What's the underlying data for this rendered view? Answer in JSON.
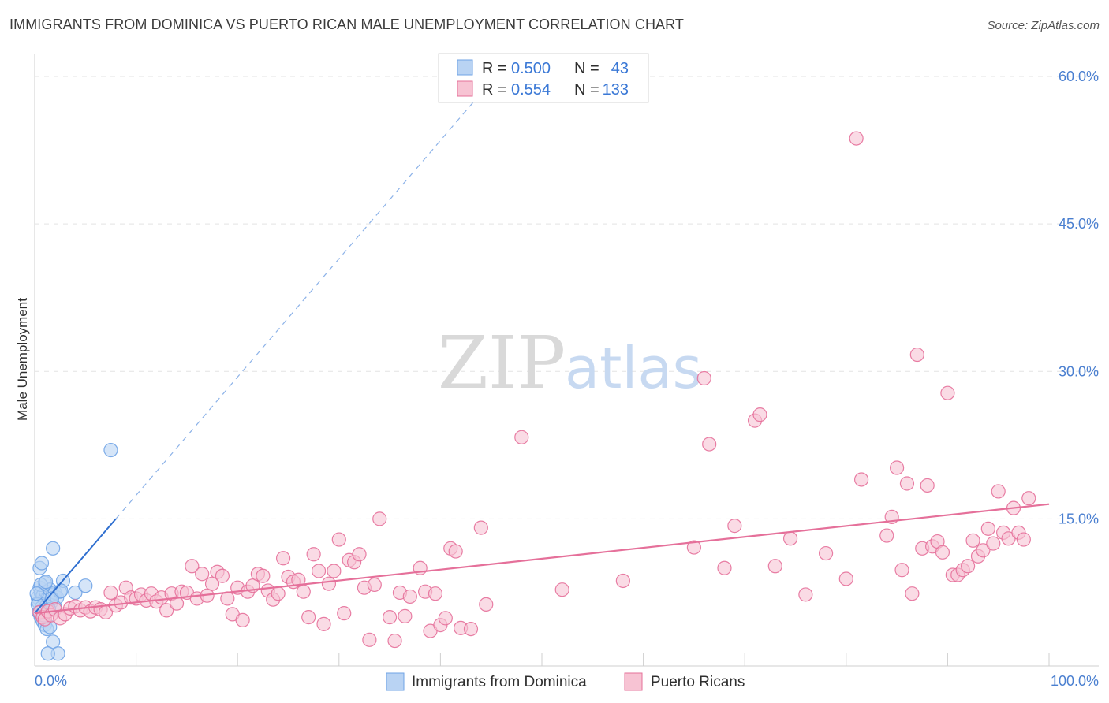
{
  "chart_data": {
    "type": "scatter",
    "title": "IMMIGRANTS FROM DOMINICA VS PUERTO RICAN MALE UNEMPLOYMENT CORRELATION CHART",
    "source": "Source: ZipAtlas.com",
    "ylabel": "Male Unemployment",
    "xlabel": "",
    "xlim": [
      0,
      100
    ],
    "ylim": [
      0,
      63
    ],
    "x_tick_labels": [
      "0.0%",
      "100.0%"
    ],
    "y_ticks": [
      15,
      30,
      45,
      60
    ],
    "y_tick_labels": [
      "15.0%",
      "30.0%",
      "45.0%",
      "60.0%"
    ],
    "watermark": {
      "zip": "ZIP",
      "atlas": "atlas"
    },
    "legend": {
      "r_label": "R =",
      "n_label": "N =",
      "entries": [
        {
          "r": "0.500",
          "n": "43"
        },
        {
          "r": "0.554",
          "n": "133"
        }
      ]
    },
    "series": [
      {
        "name": "Immigrants from Dominica",
        "color": "#6fa3e6",
        "fill": "#b9d3f3",
        "trend": {
          "x0": 0,
          "y0": 5.4,
          "x1": 8,
          "y1": 15.0,
          "x_dash_end": 45,
          "y_dash_end": 59.5
        },
        "points": [
          [
            0.3,
            7.0
          ],
          [
            0.4,
            6.5
          ],
          [
            0.5,
            8.0
          ],
          [
            0.6,
            7.5
          ],
          [
            0.7,
            6.0
          ],
          [
            0.8,
            7.2
          ],
          [
            0.9,
            5.5
          ],
          [
            1.0,
            6.8
          ],
          [
            1.1,
            7.6
          ],
          [
            1.2,
            6.2
          ],
          [
            0.5,
            10.0
          ],
          [
            0.7,
            10.5
          ],
          [
            1.0,
            8.5
          ],
          [
            1.3,
            7.0
          ],
          [
            1.5,
            7.8
          ],
          [
            1.6,
            6.5
          ],
          [
            1.8,
            7.3
          ],
          [
            2.0,
            7.5
          ],
          [
            2.2,
            7.0
          ],
          [
            2.5,
            7.6
          ],
          [
            0.4,
            5.5
          ],
          [
            0.6,
            5.0
          ],
          [
            0.8,
            4.6
          ],
          [
            1.0,
            4.2
          ],
          [
            1.2,
            3.8
          ],
          [
            1.5,
            4.0
          ],
          [
            1.8,
            2.5
          ],
          [
            2.3,
            1.3
          ],
          [
            1.3,
            1.3
          ],
          [
            1.8,
            12.0
          ],
          [
            2.8,
            8.7
          ],
          [
            4.0,
            7.5
          ],
          [
            5.0,
            8.2
          ],
          [
            7.5,
            22.0
          ],
          [
            2.0,
            6.0
          ],
          [
            1.4,
            5.8
          ],
          [
            0.9,
            5.2
          ],
          [
            0.3,
            6.3
          ],
          [
            1.7,
            6.9
          ],
          [
            0.6,
            8.3
          ],
          [
            1.1,
            8.6
          ],
          [
            2.6,
            7.7
          ],
          [
            0.2,
            7.4
          ]
        ]
      },
      {
        "name": "Puerto Ricans",
        "color": "#e5709a",
        "fill": "#f7c3d3",
        "trend": {
          "x0": 0,
          "y0": 5.4,
          "x1": 100,
          "y1": 16.5
        },
        "points": [
          [
            0.5,
            5.5
          ],
          [
            0.8,
            5.0
          ],
          [
            1.0,
            4.8
          ],
          [
            1.3,
            5.6
          ],
          [
            1.6,
            5.2
          ],
          [
            2.0,
            5.8
          ],
          [
            2.5,
            4.9
          ],
          [
            3.0,
            5.3
          ],
          [
            3.5,
            5.9
          ],
          [
            4.0,
            6.1
          ],
          [
            4.5,
            5.7
          ],
          [
            5.0,
            6.0
          ],
          [
            5.5,
            5.6
          ],
          [
            6.0,
            6.0
          ],
          [
            6.5,
            5.8
          ],
          [
            7.0,
            5.5
          ],
          [
            7.5,
            7.5
          ],
          [
            8.0,
            6.2
          ],
          [
            8.5,
            6.5
          ],
          [
            9.0,
            8.0
          ],
          [
            9.5,
            7.0
          ],
          [
            10.0,
            6.9
          ],
          [
            10.5,
            7.3
          ],
          [
            11.0,
            6.7
          ],
          [
            11.5,
            7.4
          ],
          [
            12.0,
            6.6
          ],
          [
            12.5,
            7.0
          ],
          [
            13.0,
            5.7
          ],
          [
            13.5,
            7.4
          ],
          [
            14.0,
            6.4
          ],
          [
            14.5,
            7.6
          ],
          [
            15.0,
            7.5
          ],
          [
            15.5,
            10.2
          ],
          [
            16.0,
            6.9
          ],
          [
            16.5,
            9.4
          ],
          [
            17.0,
            7.2
          ],
          [
            17.5,
            8.4
          ],
          [
            18.0,
            9.6
          ],
          [
            18.5,
            9.2
          ],
          [
            19.0,
            6.9
          ],
          [
            19.5,
            5.3
          ],
          [
            20.0,
            8.0
          ],
          [
            20.5,
            4.7
          ],
          [
            21.0,
            7.6
          ],
          [
            21.5,
            8.2
          ],
          [
            22.0,
            9.4
          ],
          [
            22.5,
            9.2
          ],
          [
            23.0,
            7.7
          ],
          [
            23.5,
            6.8
          ],
          [
            24.0,
            7.4
          ],
          [
            24.5,
            11.0
          ],
          [
            25.0,
            9.1
          ],
          [
            25.5,
            8.6
          ],
          [
            26.0,
            8.8
          ],
          [
            26.5,
            7.6
          ],
          [
            27.0,
            5.0
          ],
          [
            27.5,
            11.4
          ],
          [
            28.0,
            9.7
          ],
          [
            28.5,
            4.3
          ],
          [
            29.0,
            8.4
          ],
          [
            29.5,
            9.7
          ],
          [
            30.0,
            12.9
          ],
          [
            30.5,
            5.4
          ],
          [
            31.0,
            10.8
          ],
          [
            31.5,
            10.6
          ],
          [
            32.0,
            11.4
          ],
          [
            32.5,
            8.0
          ],
          [
            33.0,
            2.7
          ],
          [
            33.5,
            8.3
          ],
          [
            34.0,
            15.0
          ],
          [
            35.0,
            5.0
          ],
          [
            35.5,
            2.6
          ],
          [
            36.0,
            7.5
          ],
          [
            36.5,
            5.1
          ],
          [
            37.0,
            7.1
          ],
          [
            38.0,
            10.0
          ],
          [
            38.5,
            7.6
          ],
          [
            39.0,
            3.6
          ],
          [
            39.5,
            7.4
          ],
          [
            40.0,
            4.2
          ],
          [
            40.5,
            4.9
          ],
          [
            41.0,
            12.0
          ],
          [
            41.5,
            11.7
          ],
          [
            42.0,
            3.9
          ],
          [
            43.0,
            3.8
          ],
          [
            44.0,
            14.1
          ],
          [
            44.5,
            6.3
          ],
          [
            48.0,
            23.3
          ],
          [
            52.0,
            7.8
          ],
          [
            58.0,
            8.7
          ],
          [
            65.0,
            12.1
          ],
          [
            66.0,
            29.3
          ],
          [
            66.5,
            22.6
          ],
          [
            68.0,
            10.0
          ],
          [
            69.0,
            14.3
          ],
          [
            71.0,
            25.0
          ],
          [
            71.5,
            25.6
          ],
          [
            73.0,
            10.2
          ],
          [
            74.5,
            13.0
          ],
          [
            76.0,
            7.3
          ],
          [
            78.0,
            11.5
          ],
          [
            80.0,
            8.9
          ],
          [
            81.0,
            53.7
          ],
          [
            81.5,
            19.0
          ],
          [
            84.0,
            13.3
          ],
          [
            84.5,
            15.2
          ],
          [
            85.0,
            20.2
          ],
          [
            85.5,
            9.8
          ],
          [
            86.0,
            18.6
          ],
          [
            86.5,
            7.4
          ],
          [
            87.0,
            31.7
          ],
          [
            87.5,
            12.0
          ],
          [
            88.0,
            18.4
          ],
          [
            88.5,
            12.2
          ],
          [
            89.0,
            12.7
          ],
          [
            89.5,
            11.6
          ],
          [
            90.0,
            27.8
          ],
          [
            90.5,
            9.3
          ],
          [
            91.0,
            9.3
          ],
          [
            91.5,
            9.8
          ],
          [
            92.0,
            10.2
          ],
          [
            92.5,
            12.8
          ],
          [
            93.0,
            11.2
          ],
          [
            93.5,
            11.8
          ],
          [
            94.0,
            14.0
          ],
          [
            94.5,
            12.5
          ],
          [
            95.0,
            17.8
          ],
          [
            95.5,
            13.6
          ],
          [
            96.0,
            13.0
          ],
          [
            96.5,
            16.1
          ],
          [
            97.0,
            13.6
          ],
          [
            97.5,
            12.9
          ],
          [
            98.0,
            17.1
          ]
        ]
      }
    ]
  }
}
